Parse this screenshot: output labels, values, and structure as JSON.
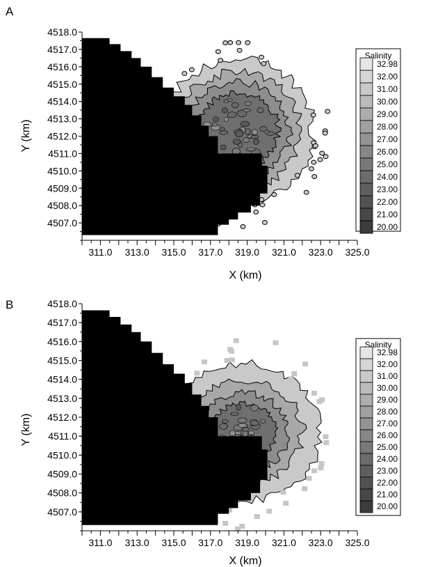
{
  "chart_data": [
    {
      "type": "heatmap",
      "panel_label": "A",
      "title": "",
      "xlabel": "X (km)",
      "ylabel": "Y (km)",
      "xlim": [
        310.0,
        325.0
      ],
      "ylim": [
        4506.0,
        4518.0
      ],
      "x_ticks": [
        "311.0",
        "313.0",
        "315.0",
        "317.0",
        "319.0",
        "321.0",
        "323.0",
        "325.0"
      ],
      "y_ticks": [
        "4507.0",
        "4508.0",
        "4509.0",
        "4510.0",
        "4511.0",
        "4512.0",
        "4513.0",
        "4514.0",
        "4515.0",
        "4516.0",
        "4517.0",
        "4518.0"
      ],
      "legend": {
        "title": "Salinity",
        "placement": "right",
        "levels": [
          "32.98",
          "32.00",
          "31.00",
          "30.00",
          "29.00",
          "28.00",
          "27.00",
          "26.00",
          "25.00",
          "24.00",
          "23.00",
          "22.00",
          "21.00",
          "20.00"
        ]
      },
      "plume_center": [
        318.5,
        4512.3
      ],
      "plume_radii": [
        2.2,
        2.8,
        3.4,
        4.1
      ]
    },
    {
      "type": "heatmap",
      "panel_label": "B",
      "title": "",
      "xlabel": "X (km)",
      "ylabel": "Y (km)",
      "xlim": [
        310.0,
        325.0
      ],
      "ylim": [
        4506.0,
        4518.0
      ],
      "x_ticks": [
        "311.0",
        "313.0",
        "315.0",
        "317.0",
        "319.0",
        "321.0",
        "323.0",
        "325.0"
      ],
      "y_ticks": [
        "4507.0",
        "4508.0",
        "4509.0",
        "4510.0",
        "4511.0",
        "4512.0",
        "4513.0",
        "4514.0",
        "4515.0",
        "4516.0",
        "4517.0",
        "4518.0"
      ],
      "legend": {
        "title": "Salinity",
        "placement": "right",
        "levels": [
          "32.98",
          "32.00",
          "31.00",
          "30.00",
          "29.00",
          "28.00",
          "27.00",
          "26.00",
          "25.00",
          "24.00",
          "23.00",
          "22.00",
          "21.00",
          "20.00"
        ]
      },
      "plume_center": [
        318.8,
        4511.2
      ],
      "plume_radii": [
        1.6,
        2.2,
        2.9,
        3.8
      ]
    }
  ],
  "colors": {
    "land": "#000000",
    "contour_line": "#000000",
    "scale": [
      "#e6e6e6",
      "#d6d6d6",
      "#c9c9c9",
      "#bcbcbc",
      "#adadad",
      "#a0a0a0",
      "#939393",
      "#868686",
      "#797979",
      "#6c6c6c",
      "#5f5f5f",
      "#525252",
      "#474747",
      "#3c3c3c"
    ]
  }
}
